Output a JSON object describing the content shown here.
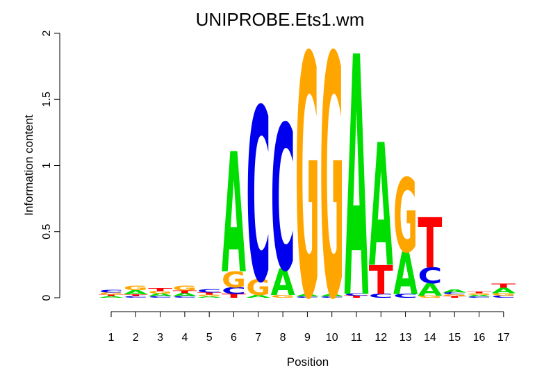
{
  "chart_data": {
    "type": "sequence-logo",
    "title": "UNIPROBE.Ets1.wm",
    "xlabel": "Position",
    "ylabel": "Information content",
    "ylim": [
      0,
      2
    ],
    "yticks": [
      0,
      0.5,
      1,
      1.5,
      2
    ],
    "ytick_labels": [
      "0",
      "0.5",
      "1",
      "1.5",
      "2"
    ],
    "positions": [
      1,
      2,
      3,
      4,
      5,
      6,
      7,
      8,
      9,
      10,
      11,
      12,
      13,
      14,
      15,
      16,
      17
    ],
    "position_labels": [
      "1",
      "2",
      "3",
      "4",
      "5",
      "6",
      "7",
      "8",
      "9",
      "10",
      "11",
      "12",
      "13",
      "14",
      "15",
      "16",
      "17"
    ],
    "colors": {
      "A": "#00dd00",
      "C": "#0000ee",
      "G": "#ffa500",
      "T": "#ff0000"
    },
    "stacks": [
      [
        {
          "letter": "A",
          "height": 0.012
        },
        {
          "letter": "T",
          "height": 0.012
        },
        {
          "letter": "G",
          "height": 0.015
        },
        {
          "letter": "C",
          "height": 0.021
        }
      ],
      [
        {
          "letter": "C",
          "height": 0.013
        },
        {
          "letter": "T",
          "height": 0.014
        },
        {
          "letter": "A",
          "height": 0.032
        },
        {
          "letter": "G",
          "height": 0.033
        }
      ],
      [
        {
          "letter": "C",
          "height": 0.012
        },
        {
          "letter": "A",
          "height": 0.019
        },
        {
          "letter": "G",
          "height": 0.019
        },
        {
          "letter": "T",
          "height": 0.022
        }
      ],
      [
        {
          "letter": "C",
          "height": 0.012
        },
        {
          "letter": "A",
          "height": 0.022
        },
        {
          "letter": "T",
          "height": 0.021
        },
        {
          "letter": "G",
          "height": 0.036
        }
      ],
      [
        {
          "letter": "A",
          "height": 0.011
        },
        {
          "letter": "G",
          "height": 0.012
        },
        {
          "letter": "T",
          "height": 0.016
        },
        {
          "letter": "C",
          "height": 0.028
        }
      ],
      [
        {
          "letter": "T",
          "height": 0.03
        },
        {
          "letter": "C",
          "height": 0.05
        },
        {
          "letter": "G",
          "height": 0.12
        },
        {
          "letter": "A",
          "height": 0.91
        }
      ],
      [
        {
          "letter": "A",
          "height": 0.02
        },
        {
          "letter": "G",
          "height": 0.12
        },
        {
          "letter": "C",
          "height": 1.31
        }
      ],
      [
        {
          "letter": "G",
          "height": 0.02
        },
        {
          "letter": "A",
          "height": 0.2
        },
        {
          "letter": "C",
          "height": 1.1
        }
      ],
      [
        {
          "letter": "C",
          "height": 0.01
        },
        {
          "letter": "A",
          "height": 0.015
        },
        {
          "letter": "G",
          "height": 1.83
        }
      ],
      [
        {
          "letter": "C",
          "height": 0.01
        },
        {
          "letter": "A",
          "height": 0.015
        },
        {
          "letter": "G",
          "height": 1.83
        }
      ],
      [
        {
          "letter": "T",
          "height": 0.015
        },
        {
          "letter": "C",
          "height": 0.015
        },
        {
          "letter": "A",
          "height": 1.82
        }
      ],
      [
        {
          "letter": "C",
          "height": 0.03
        },
        {
          "letter": "T",
          "height": 0.22
        },
        {
          "letter": "A",
          "height": 0.93
        }
      ],
      [
        {
          "letter": "C",
          "height": 0.03
        },
        {
          "letter": "A",
          "height": 0.32
        },
        {
          "letter": "G",
          "height": 0.56
        }
      ],
      [
        {
          "letter": "G",
          "height": 0.015
        },
        {
          "letter": "A",
          "height": 0.095
        },
        {
          "letter": "C",
          "height": 0.12
        },
        {
          "letter": "T",
          "height": 0.38
        }
      ],
      [
        {
          "letter": "T",
          "height": 0.012
        },
        {
          "letter": "G",
          "height": 0.013
        },
        {
          "letter": "C",
          "height": 0.015
        },
        {
          "letter": "A",
          "height": 0.025
        }
      ],
      [
        {
          "letter": "C",
          "height": 0.01
        },
        {
          "letter": "A",
          "height": 0.012
        },
        {
          "letter": "G",
          "height": 0.012
        },
        {
          "letter": "T",
          "height": 0.014
        }
      ],
      [
        {
          "letter": "C",
          "height": 0.015
        },
        {
          "letter": "G",
          "height": 0.02
        },
        {
          "letter": "A",
          "height": 0.04
        },
        {
          "letter": "T",
          "height": 0.03
        }
      ]
    ]
  }
}
